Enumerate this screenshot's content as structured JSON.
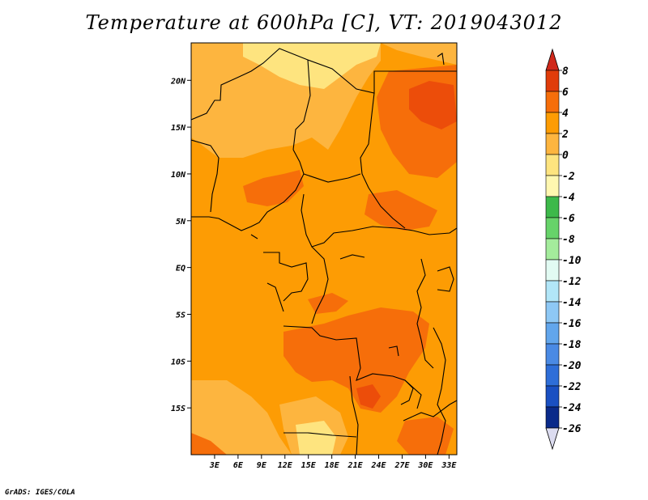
{
  "title": "Temperature at 600hPa [C], VT: 2019043012",
  "credit": "GrADS: IGES/COLA",
  "map": {
    "lon_range": [
      0,
      34
    ],
    "lat_range": [
      -20,
      24
    ],
    "lat_ticks": [
      {
        "value": 20,
        "label": "20N"
      },
      {
        "value": 15,
        "label": "15N"
      },
      {
        "value": 10,
        "label": "10N"
      },
      {
        "value": 5,
        "label": "5N"
      },
      {
        "value": 0,
        "label": "EQ"
      },
      {
        "value": -5,
        "label": "5S"
      },
      {
        "value": -10,
        "label": "10S"
      },
      {
        "value": -15,
        "label": "15S"
      }
    ],
    "lon_ticks": [
      {
        "value": 3,
        "label": "3E"
      },
      {
        "value": 6,
        "label": "6E"
      },
      {
        "value": 9,
        "label": "9E"
      },
      {
        "value": 12,
        "label": "12E"
      },
      {
        "value": 15,
        "label": "15E"
      },
      {
        "value": 18,
        "label": "18E"
      },
      {
        "value": 21,
        "label": "21E"
      },
      {
        "value": 24,
        "label": "24E"
      },
      {
        "value": 27,
        "label": "27E"
      },
      {
        "value": 30,
        "label": "30E"
      },
      {
        "value": 33,
        "label": "33E"
      }
    ],
    "colors": {
      "band_m2_0": "#fee47f",
      "band_0_2": "#fdb53f",
      "band_2_4": "#fd9c04",
      "band_4_6": "#f66e0a",
      "band_6_8": "#ec4d0a",
      "border": "#000000"
    }
  },
  "colorbar": {
    "levels": [
      "8",
      "6",
      "4",
      "2",
      "0",
      "-2",
      "-4",
      "-6",
      "-8",
      "-10",
      "-12",
      "-14",
      "-16",
      "-18",
      "-20",
      "-22",
      "-24",
      "-26"
    ],
    "colors": [
      "#e03c0a",
      "#f66e0a",
      "#fd9c04",
      "#fdb53f",
      "#fee47f",
      "#fff7b0",
      "#3db94a",
      "#67d36a",
      "#a4ec9c",
      "#e2fbf3",
      "#b2e6f8",
      "#8ec8f5",
      "#62a6ec",
      "#4a8ae4",
      "#2e6ed8",
      "#1a50c2",
      "#0a2a8a"
    ],
    "top_arrow_color": "#d0281a",
    "bottom_arrow_color": "#dcdcf0"
  }
}
